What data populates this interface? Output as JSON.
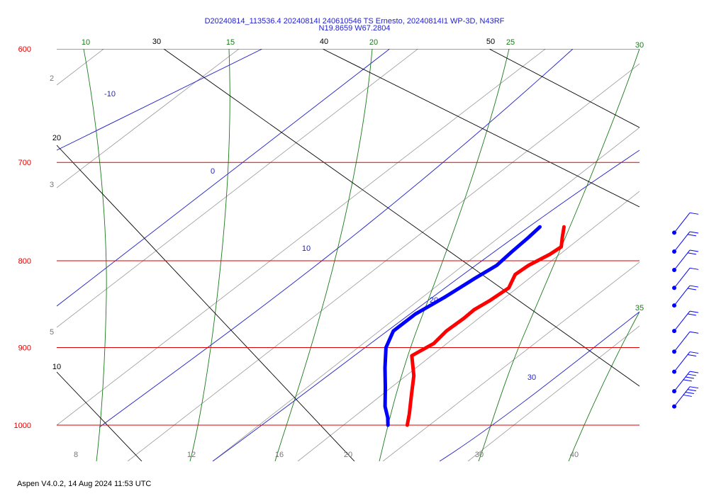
{
  "header": {
    "title_line1": "D20240814_113536.4 20240814I 240610546 TS Ernesto, 20240814I1 WP-3D, N43RF",
    "title_line2": "N19.8659 W67.2804"
  },
  "footer": {
    "text": "Aspen V4.0.2, 14 Aug 2024  11:53 UTC"
  },
  "colors": {
    "isobar": "#dd0000",
    "isotherm": "#000000",
    "dry_adiabat": "#1f1fcc",
    "moist_adiabat": "#1a7a1a",
    "mixing_ratio": "#999999",
    "temperature": "#ff0000",
    "dewpoint": "#0000ff"
  },
  "chart_data": {
    "type": "skew-t",
    "pressure_levels": [
      "600",
      "700",
      "800",
      "900",
      "1000"
    ],
    "isotherm_labels": [
      "30",
      "40",
      "50",
      "20",
      "10"
    ],
    "dry_adiabat_labels": [
      "-10",
      "0",
      "10",
      "20",
      "30"
    ],
    "moist_adiabat_labels": [
      "10",
      "15",
      "20",
      "25",
      "30",
      "35"
    ],
    "mixing_ratio_labels": [
      "2",
      "3",
      "5"
    ],
    "bottom_axis_labels": [
      "8",
      "12",
      "16",
      "20",
      "30",
      "40"
    ],
    "temperature_profile": {
      "name": "Temperature",
      "points": [
        {
          "p": 764,
          "t": 25.0
        },
        {
          "p": 775,
          "t": 25.5
        },
        {
          "p": 785,
          "t": 26.0
        },
        {
          "p": 793,
          "t": 25.3
        },
        {
          "p": 805,
          "t": 23.8
        },
        {
          "p": 815,
          "t": 23.0
        },
        {
          "p": 830,
          "t": 23.2
        },
        {
          "p": 845,
          "t": 22.0
        },
        {
          "p": 855,
          "t": 21.0
        },
        {
          "p": 865,
          "t": 20.5
        },
        {
          "p": 880,
          "t": 19.5
        },
        {
          "p": 895,
          "t": 19.0
        },
        {
          "p": 910,
          "t": 17.5
        },
        {
          "p": 935,
          "t": 19.0
        },
        {
          "p": 960,
          "t": 20.0
        },
        {
          "p": 985,
          "t": 21.0
        },
        {
          "p": 1000,
          "t": 21.5
        }
      ]
    },
    "dewpoint_profile": {
      "name": "Dewpoint",
      "points": [
        {
          "p": 764,
          "t": 22.5
        },
        {
          "p": 775,
          "t": 22.0
        },
        {
          "p": 790,
          "t": 21.2
        },
        {
          "p": 805,
          "t": 20.5
        },
        {
          "p": 820,
          "t": 19.0
        },
        {
          "p": 840,
          "t": 17.2
        },
        {
          "p": 860,
          "t": 15.2
        },
        {
          "p": 880,
          "t": 14.0
        },
        {
          "p": 900,
          "t": 14.3
        },
        {
          "p": 925,
          "t": 15.5
        },
        {
          "p": 950,
          "t": 16.8
        },
        {
          "p": 975,
          "t": 18.0
        },
        {
          "p": 990,
          "t": 19.0
        },
        {
          "p": 1000,
          "t": 19.5
        }
      ]
    },
    "wind_barbs": [
      {
        "p": 770
      },
      {
        "p": 790
      },
      {
        "p": 810
      },
      {
        "p": 830
      },
      {
        "p": 850
      },
      {
        "p": 880
      },
      {
        "p": 905
      },
      {
        "p": 930
      },
      {
        "p": 955
      },
      {
        "p": 975
      }
    ]
  }
}
